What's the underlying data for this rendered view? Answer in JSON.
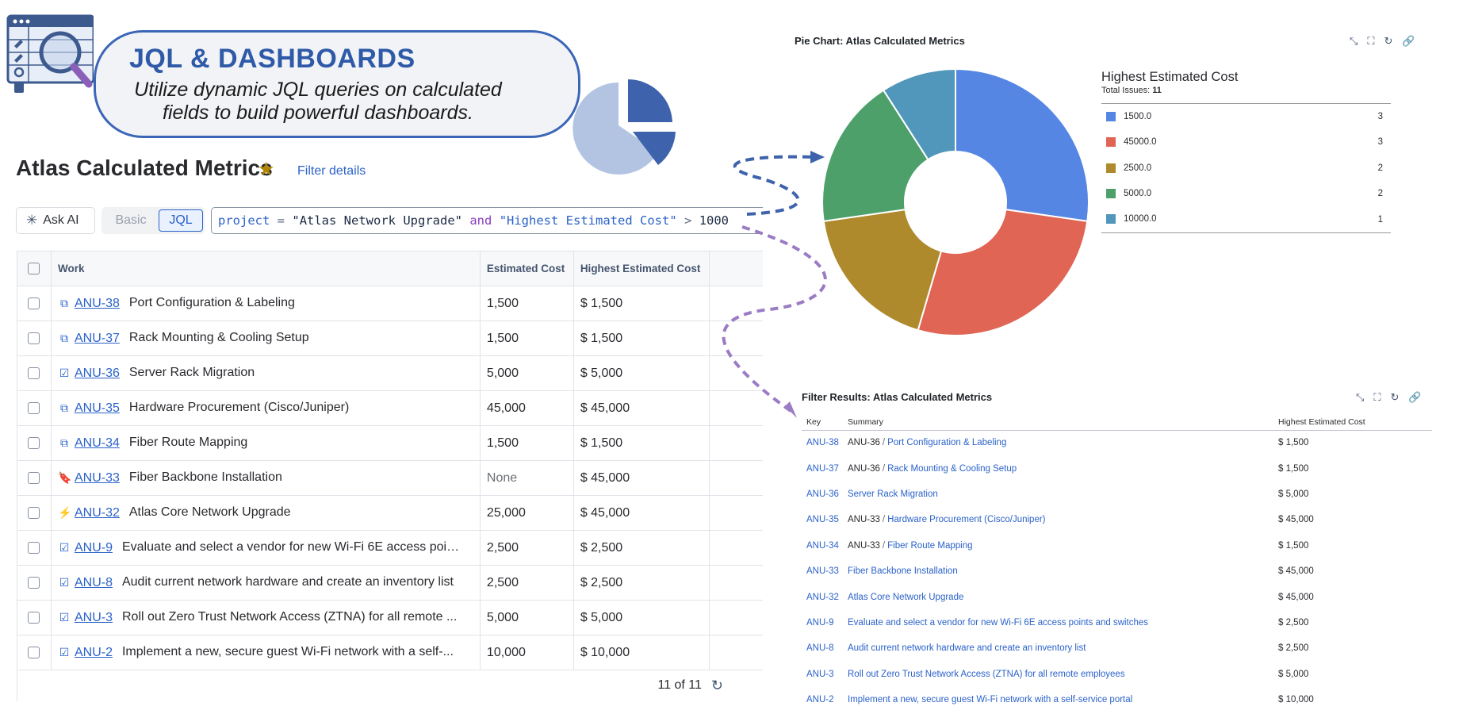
{
  "banner": {
    "title": "JQL & DASHBOARDS",
    "subtitle": "Utilize dynamic JQL queries on calculated fields to build powerful dashboards."
  },
  "page": {
    "title": "Atlas Calculated Metrics",
    "filter_details_link": "Filter details"
  },
  "toolbar": {
    "ask_ai_label": "Ask AI",
    "basic_label": "Basic",
    "jql_label": "JQL",
    "query": {
      "kw_project": "project",
      "op_eq": "=",
      "str_project": "\"Atlas Network Upgrade\"",
      "kw_and": "and",
      "field": "\"Highest Estimated Cost\"",
      "op_gt": ">",
      "value": "1000"
    }
  },
  "work_table": {
    "headers": {
      "work": "Work",
      "estimated_cost": "Estimated Cost",
      "highest_estimated_cost": "Highest Estimated Cost"
    },
    "rows": [
      {
        "icon": "subtask-icon",
        "key": "ANU-38",
        "summary": "Port Configuration & Labeling",
        "est": "1,500",
        "high": "$ 1,500"
      },
      {
        "icon": "subtask-icon",
        "key": "ANU-37",
        "summary": "Rack Mounting & Cooling Setup",
        "est": "1,500",
        "high": "$ 1,500"
      },
      {
        "icon": "task-icon",
        "key": "ANU-36",
        "summary": "Server Rack Migration",
        "est": "5,000",
        "high": "$ 5,000"
      },
      {
        "icon": "subtask-icon",
        "key": "ANU-35",
        "summary": "Hardware Procurement (Cisco/Juniper)",
        "est": "45,000",
        "high": "$ 45,000"
      },
      {
        "icon": "subtask-icon",
        "key": "ANU-34",
        "summary": "Fiber Route Mapping",
        "est": "1,500",
        "high": "$ 1,500"
      },
      {
        "icon": "story-icon",
        "key": "ANU-33",
        "summary": "Fiber Backbone Installation",
        "est": "None",
        "high": "$ 45,000"
      },
      {
        "icon": "epic-icon",
        "key": "ANU-32",
        "summary": "Atlas Core Network Upgrade",
        "est": "25,000",
        "high": "$ 45,000"
      },
      {
        "icon": "task-icon",
        "key": "ANU-9",
        "summary": "Evaluate and select a vendor for new Wi-Fi 6E access poin...",
        "est": "2,500",
        "high": "$ 2,500"
      },
      {
        "icon": "task-icon",
        "key": "ANU-8",
        "summary": "Audit current network hardware and create an inventory list",
        "est": "2,500",
        "high": "$ 2,500"
      },
      {
        "icon": "task-icon",
        "key": "ANU-3",
        "summary": "Roll out Zero Trust Network Access (ZTNA) for all remote ...",
        "est": "5,000",
        "high": "$ 5,000"
      },
      {
        "icon": "task-icon",
        "key": "ANU-2",
        "summary": "Implement a new, secure guest Wi-Fi network with a self-...",
        "est": "10,000",
        "high": "$ 10,000"
      }
    ],
    "pagination": "11 of 11"
  },
  "pie_gadget": {
    "title": "Pie Chart: Atlas Calculated Metrics",
    "legend_title": "Highest Estimated Cost",
    "total_label": "Total Issues:",
    "total_value": "11"
  },
  "chart_data": {
    "type": "pie",
    "title": "Highest Estimated Cost",
    "categories": [
      "1500.0",
      "45000.0",
      "2500.0",
      "5000.0",
      "10000.0"
    ],
    "values": [
      3,
      3,
      2,
      2,
      1
    ],
    "colors": [
      "#5586e3",
      "#e06555",
      "#ae8a2c",
      "#4ea06b",
      "#5197bb"
    ],
    "donut": true,
    "legend_position": "right"
  },
  "filter_results": {
    "title": "Filter Results: Atlas Calculated Metrics",
    "headers": {
      "key": "Key",
      "summary": "Summary",
      "cost": "Highest Estimated Cost"
    },
    "rows": [
      {
        "key": "ANU-38",
        "parent": "ANU-36",
        "summary": "Port Configuration & Labeling",
        "cost": "$ 1,500"
      },
      {
        "key": "ANU-37",
        "parent": "ANU-36",
        "summary": "Rack Mounting & Cooling Setup",
        "cost": "$ 1,500"
      },
      {
        "key": "ANU-36",
        "parent": "",
        "summary": "Server Rack Migration",
        "cost": "$ 5,000"
      },
      {
        "key": "ANU-35",
        "parent": "ANU-33",
        "summary": "Hardware Procurement (Cisco/Juniper)",
        "cost": "$ 45,000"
      },
      {
        "key": "ANU-34",
        "parent": "ANU-33",
        "summary": "Fiber Route Mapping",
        "cost": "$ 1,500"
      },
      {
        "key": "ANU-33",
        "parent": "",
        "summary": "Fiber Backbone Installation",
        "cost": "$ 45,000"
      },
      {
        "key": "ANU-32",
        "parent": "",
        "summary": "Atlas Core Network Upgrade",
        "cost": "$ 45,000"
      },
      {
        "key": "ANU-9",
        "parent": "",
        "summary": "Evaluate and select a vendor for new Wi-Fi 6E access points and switches",
        "cost": "$ 2,500"
      },
      {
        "key": "ANU-8",
        "parent": "",
        "summary": "Audit current network hardware and create an inventory list",
        "cost": "$ 2,500"
      },
      {
        "key": "ANU-3",
        "parent": "",
        "summary": "Roll out Zero Trust Network Access (ZTNA) for all remote employees",
        "cost": "$ 5,000"
      },
      {
        "key": "ANU-2",
        "parent": "",
        "summary": "Implement a new, secure guest Wi-Fi network with a self-service portal",
        "cost": "$ 10,000"
      }
    ]
  }
}
